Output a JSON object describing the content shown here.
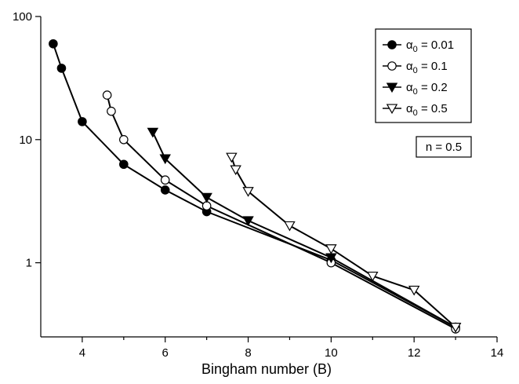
{
  "chart_data": {
    "type": "line",
    "title": "",
    "xlabel": "Bingham number (B)",
    "ylabel": "",
    "xlim": [
      3,
      14
    ],
    "ylim": [
      0.25,
      100
    ],
    "y_scale": "log",
    "grid": false,
    "legend_position": "top-right",
    "x_ticks": [
      "4",
      "6",
      "8",
      "10",
      "12",
      "14"
    ],
    "y_ticks": [
      "1",
      "10",
      "100"
    ],
    "annotation": "n = 0.5",
    "series": [
      {
        "name": "α0 = 0.01",
        "legend_symbol": "α",
        "legend_subscript": "0",
        "legend_value": " = 0.01",
        "marker": "filled-circle",
        "x": [
          3.3,
          3.5,
          4,
          5,
          6,
          7,
          10,
          13
        ],
        "y": [
          60,
          38,
          14,
          6.3,
          3.9,
          2.6,
          1.05,
          0.3
        ]
      },
      {
        "name": "α0 = 0.1",
        "legend_symbol": "α",
        "legend_subscript": "0",
        "legend_value": " = 0.1",
        "marker": "open-circle",
        "x": [
          4.6,
          4.7,
          5,
          6,
          7,
          10,
          13
        ],
        "y": [
          23,
          17,
          10,
          4.7,
          2.9,
          1.0,
          0.29
        ]
      },
      {
        "name": "α0 = 0.2",
        "legend_symbol": "α",
        "legend_subscript": "0",
        "legend_value": " = 0.2",
        "marker": "filled-triangle-down",
        "x": [
          5.7,
          6,
          7,
          8,
          10,
          13
        ],
        "y": [
          11.5,
          7,
          3.4,
          2.2,
          1.1,
          0.3
        ]
      },
      {
        "name": "α0 = 0.5",
        "legend_symbol": "α",
        "legend_subscript": "0",
        "legend_value": " = 0.5",
        "marker": "open-triangle-down",
        "x": [
          7.6,
          7.7,
          8,
          9,
          10,
          11,
          12,
          13
        ],
        "y": [
          7.2,
          5.7,
          3.8,
          2.0,
          1.3,
          0.78,
          0.6,
          0.3
        ]
      }
    ]
  }
}
